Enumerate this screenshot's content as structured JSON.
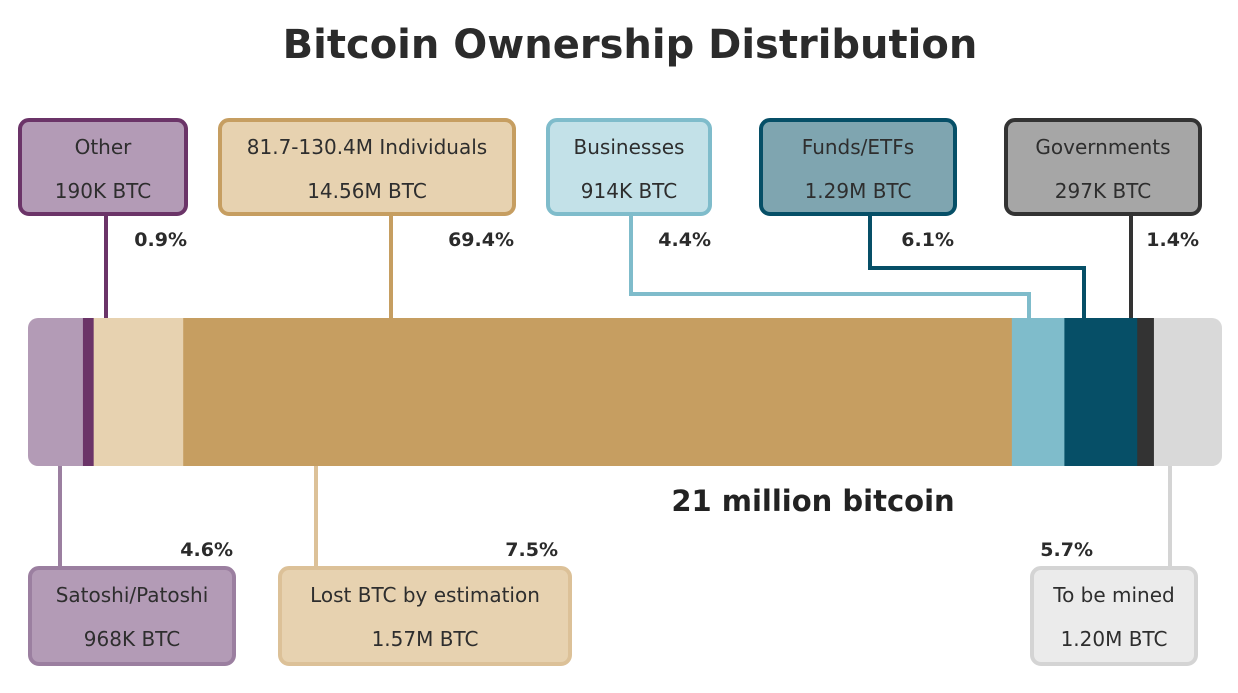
{
  "chart_data": {
    "type": "bar",
    "orientation": "horizontal-stacked",
    "title": "Bitcoin Ownership Distribution",
    "caption": "21 million bitcoin",
    "total_btc": "21 million",
    "segments": [
      {
        "id": "satoshi",
        "name": "Satoshi/Patoshi",
        "amount": "968K BTC",
        "percent": 4.6,
        "percent_label": "4.6%",
        "color": "#b39bb6",
        "box_fill": "#b39bb6",
        "box_border": "#9b7fa0",
        "text_color": "#2e2e2e",
        "position": "below"
      },
      {
        "id": "other",
        "name": "Other",
        "amount": "190K BTC",
        "percent": 0.9,
        "percent_label": "0.9%",
        "color": "#6b3468",
        "box_fill": "#b39bb6",
        "box_border": "#6b3468",
        "text_color": "#2e2e2e",
        "position": "above"
      },
      {
        "id": "lost",
        "name": "Lost BTC by estimation",
        "amount": "1.57M BTC",
        "percent": 7.5,
        "percent_label": "7.5%",
        "color": "#e7d2b0",
        "box_fill": "#e7d2b0",
        "box_border": "#dcc198",
        "text_color": "#2e2e2e",
        "position": "below"
      },
      {
        "id": "individuals",
        "name": "81.7-130.4M Individuals",
        "amount": "14.56M BTC",
        "percent": 69.4,
        "percent_label": "69.4%",
        "color": "#c69e61",
        "box_fill": "#e7d2b0",
        "box_border": "#c69e61",
        "text_color": "#2e2e2e",
        "position": "above"
      },
      {
        "id": "businesses",
        "name": "Businesses",
        "amount": "914K BTC",
        "percent": 4.4,
        "percent_label": "4.4%",
        "color": "#7fbccb",
        "box_fill": "#c3e1e8",
        "box_border": "#7fbccb",
        "text_color": "#2e2e2e",
        "position": "above"
      },
      {
        "id": "funds",
        "name": "Funds/ETFs",
        "amount": "1.29M BTC",
        "percent": 6.1,
        "percent_label": "6.1%",
        "color": "#064f67",
        "box_fill": "#7fa5b0",
        "box_border": "#064f67",
        "text_color": "#2e2e2e",
        "position": "above"
      },
      {
        "id": "governments",
        "name": "Governments",
        "amount": "297K BTC",
        "percent": 1.4,
        "percent_label": "1.4%",
        "color": "#333333",
        "box_fill": "#a6a6a6",
        "box_border": "#333333",
        "text_color": "#2e2e2e",
        "position": "above"
      },
      {
        "id": "mined",
        "name": "To be mined",
        "amount": "1.20M BTC",
        "percent": 5.7,
        "percent_label": "5.7%",
        "color": "#d9d9d9",
        "box_fill": "#ebebeb",
        "box_border": "#d4d4d4",
        "text_color": "#2e2e2e",
        "position": "below"
      }
    ]
  }
}
